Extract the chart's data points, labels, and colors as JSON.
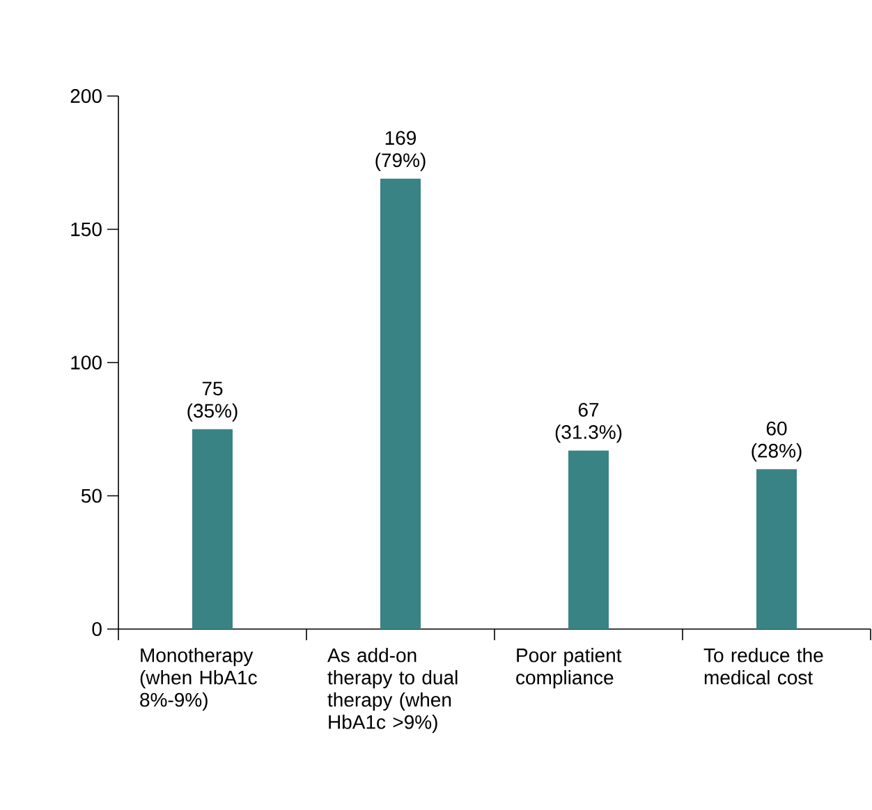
{
  "chart_data": {
    "type": "bar",
    "categories": [
      "Monotherapy (when HbA1c 8%-9%)",
      "As add-on therapy to dual therapy (when HbA1c >9%)",
      "Poor patient compliance",
      "To reduce the medical cost"
    ],
    "values": [
      75,
      169,
      67,
      60
    ],
    "color": "#3a8384",
    "value_labels": [
      "75 (35%)",
      "169 (79%)",
      "67 (31.3%)",
      "60 (28%)"
    ],
    "ylim": [
      0,
      200
    ],
    "yticks": [
      0,
      50,
      100,
      150,
      200
    ]
  }
}
